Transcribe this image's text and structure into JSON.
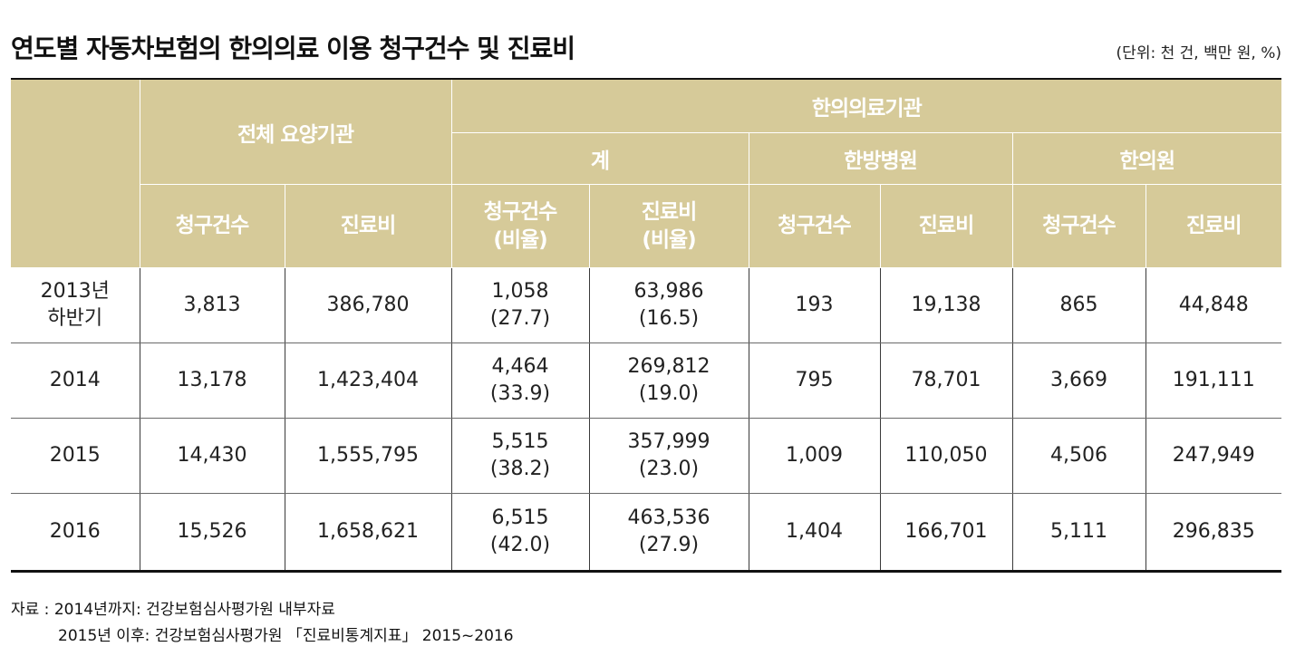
{
  "title": "연도별 자동차보험의 한의의료 이용 청구건수 및 진료비",
  "unit": "(단위: 천 건, 백만 원, %)",
  "header": {
    "all": "전체 요양기관",
    "oriental": "한의의료기관",
    "total": "계",
    "hospital": "한방병원",
    "clinic": "한의원",
    "claims": "청구건수",
    "cost": "진료비",
    "claims_ratio": "청구건수",
    "cost_ratio": "진료비",
    "ratio": "(비율)"
  },
  "rows": [
    {
      "year": "2013년",
      "year2": "하반기",
      "all_claims": "3,813",
      "all_cost": "386,780",
      "t_claims": "1,058",
      "t_claims_r": "(27.7)",
      "t_cost": "63,986",
      "t_cost_r": "(16.5)",
      "h_claims": "193",
      "h_cost": "19,138",
      "c_claims": "865",
      "c_cost": "44,848"
    },
    {
      "year": "2014",
      "year2": "",
      "all_claims": "13,178",
      "all_cost": "1,423,404",
      "t_claims": "4,464",
      "t_claims_r": "(33.9)",
      "t_cost": "269,812",
      "t_cost_r": "(19.0)",
      "h_claims": "795",
      "h_cost": "78,701",
      "c_claims": "3,669",
      "c_cost": "191,111"
    },
    {
      "year": "2015",
      "year2": "",
      "all_claims": "14,430",
      "all_cost": "1,555,795",
      "t_claims": "5,515",
      "t_claims_r": "(38.2)",
      "t_cost": "357,999",
      "t_cost_r": "(23.0)",
      "h_claims": "1,009",
      "h_cost": "110,050",
      "c_claims": "4,506",
      "c_cost": "247,949"
    },
    {
      "year": "2016",
      "year2": "",
      "all_claims": "15,526",
      "all_cost": "1,658,621",
      "t_claims": "6,515",
      "t_claims_r": "(42.0)",
      "t_cost": "463,536",
      "t_cost_r": "(27.9)",
      "h_claims": "1,404",
      "h_cost": "166,701",
      "c_claims": "5,111",
      "c_cost": "296,835"
    }
  ],
  "source": {
    "line1": "자료 : 2014년까지: 건강보험심사평가원 내부자료",
    "line2": "2015년 이후: 건강보험심사평가원 「진료비통계지표」 2015~2016"
  },
  "colors": {
    "header_bg": "#d6ca99",
    "header_text": "#ffffff",
    "rule": "#111111"
  }
}
